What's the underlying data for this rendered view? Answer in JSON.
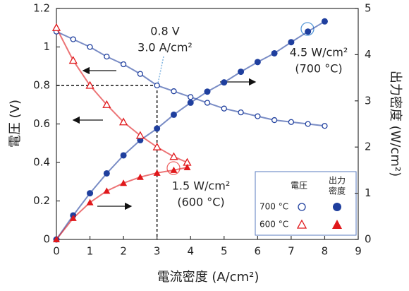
{
  "chart_data": {
    "type": "line",
    "x_label": "電流密度 (A/cm²)",
    "y_label": "電圧 (V)",
    "y2_label": "出力密度 (W/cm²)",
    "xlim": [
      0,
      9
    ],
    "xticks": [
      0,
      1,
      2,
      3,
      4,
      5,
      6,
      7,
      8,
      9
    ],
    "ylim": [
      0,
      1.2
    ],
    "yticks": [
      0,
      0.2,
      0.4,
      0.6,
      0.8,
      1,
      1.2
    ],
    "y2lim": [
      0,
      5
    ],
    "y2ticks": [
      0,
      1,
      2,
      3,
      4,
      5
    ],
    "series": [
      {
        "color": "#1f3f9e",
        "marker": "circle-open",
        "x": [
          0,
          0.5,
          1,
          1.5,
          2,
          2.5,
          3,
          3.5,
          4,
          4.5,
          5,
          5.5,
          6,
          6.5,
          7,
          7.5,
          8
        ],
        "values": [
          1.08,
          1.04,
          1.0,
          0.95,
          0.91,
          0.86,
          0.8,
          0.77,
          0.74,
          0.71,
          0.68,
          0.66,
          0.64,
          0.62,
          0.61,
          0.6,
          0.59
        ]
      },
      {
        "color": "#1f3f9e",
        "marker": "circle",
        "axis": "y2",
        "x": [
          0,
          0.5,
          1,
          1.5,
          2,
          2.5,
          3,
          3.5,
          4,
          4.5,
          5,
          5.5,
          6,
          6.5,
          7,
          7.5,
          8
        ],
        "values": [
          0,
          0.52,
          1.0,
          1.43,
          1.82,
          2.15,
          2.4,
          2.7,
          2.96,
          3.2,
          3.4,
          3.63,
          3.84,
          4.03,
          4.27,
          4.5,
          4.72
        ]
      },
      {
        "color": "#e0181b",
        "marker": "triangle-open",
        "x": [
          0,
          0.5,
          1,
          1.5,
          2,
          2.5,
          3,
          3.5,
          3.9
        ],
        "values": [
          1.1,
          0.93,
          0.8,
          0.7,
          0.61,
          0.54,
          0.48,
          0.43,
          0.4
        ]
      },
      {
        "color": "#e0181b",
        "marker": "triangle",
        "axis": "y2",
        "x": [
          0,
          0.5,
          1,
          1.5,
          2,
          2.5,
          3,
          3.5,
          3.9
        ],
        "values": [
          0,
          0.46,
          0.8,
          1.05,
          1.22,
          1.35,
          1.44,
          1.5,
          1.56
        ]
      }
    ],
    "crosshair": {
      "x": 3,
      "y": 0.8
    },
    "annotations": [
      "0.8 V",
      "3.0 A/cm²",
      "4.5 W/cm²",
      "(700 °C)",
      "1.5 W/cm²",
      "(600 °C)"
    ],
    "legend": {
      "headers": [
        "電圧",
        "出力",
        "密度"
      ],
      "rows": [
        "700 °C",
        "600 °C"
      ]
    }
  }
}
